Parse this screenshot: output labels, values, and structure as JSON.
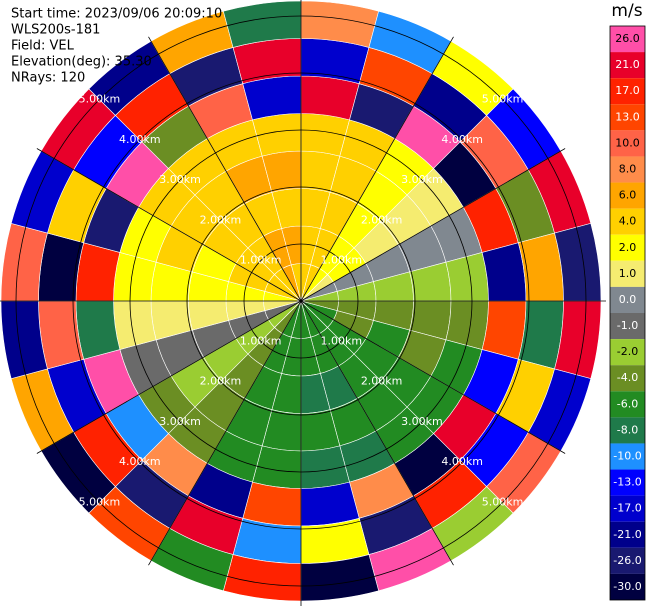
{
  "chart_data": {
    "type": "ppi",
    "info": [
      "Start time: 2023/09/06 20:09:10",
      "WLS200s-181",
      "Field: VEL",
      "Elevation(deg): 35.30",
      "NRays: 120"
    ],
    "colorbar": {
      "title": "m/s",
      "ticks": [
        {
          "value": 26,
          "label": "26.0"
        },
        {
          "value": 21,
          "label": "21.0"
        },
        {
          "value": 17,
          "label": "17.0"
        },
        {
          "value": 13,
          "label": "13.0"
        },
        {
          "value": 10,
          "label": "10.0"
        },
        {
          "value": 8,
          "label": "8.0"
        },
        {
          "value": 6,
          "label": "6.0"
        },
        {
          "value": 4,
          "label": "4.0"
        },
        {
          "value": 2,
          "label": "2.0"
        },
        {
          "value": 1,
          "label": "1.0"
        },
        {
          "value": 0,
          "label": "0.0"
        },
        {
          "value": -1,
          "label": "-1.0"
        },
        {
          "value": -2,
          "label": "-2.0"
        },
        {
          "value": -4,
          "label": "-4.0"
        },
        {
          "value": -6,
          "label": "-6.0"
        },
        {
          "value": -8,
          "label": "-8.0"
        },
        {
          "value": -10,
          "label": "-10.0"
        },
        {
          "value": -13,
          "label": "-13.0"
        },
        {
          "value": -17,
          "label": "-17.0"
        },
        {
          "value": -21,
          "label": "-21.0"
        },
        {
          "value": -26,
          "label": "-26.0"
        },
        {
          "value": -30,
          "label": "-30.0"
        }
      ],
      "colors": [
        "#ff4fa8",
        "#e8002a",
        "#ff2200",
        "#ff4500",
        "#ff6347",
        "#ff8c4a",
        "#ffa500",
        "#ffd000",
        "#ffff00",
        "#f5ec70",
        "#808890",
        "#6a6a6a",
        "#9acd32",
        "#6b8e23",
        "#228b22",
        "#1f7a4a",
        "#1e90ff",
        "#0000ff",
        "#0000cd",
        "#00008b",
        "#191970",
        "#000040"
      ]
    },
    "ring_labels": [
      {
        "value": 1,
        "label": "1.00km"
      },
      {
        "value": 2,
        "label": "2.00km"
      },
      {
        "value": 3,
        "label": "3.00km"
      },
      {
        "value": 4,
        "label": "4.00km"
      },
      {
        "value": 5,
        "label": "5.00km"
      }
    ],
    "velocity": [
      [
        5.3,
        5.6,
        5.2,
        5.4,
        5.0,
        22,
        -15,
        9
      ],
      [
        4.4,
        4.6,
        4.2,
        4.5,
        4.1,
        -24,
        14,
        -9
      ],
      [
        3.2,
        3.4,
        3.0,
        3.3,
        2.9,
        27,
        -19,
        3
      ],
      [
        1.8,
        2.0,
        1.6,
        1.9,
        1.5,
        -28,
        11,
        -12
      ],
      [
        0.3,
        0.5,
        0.2,
        0.4,
        0.1,
        18,
        -4,
        25
      ],
      [
        -1.3,
        -1.1,
        -1.5,
        -1.2,
        -1.6,
        -20,
        7,
        -26
      ],
      [
        -2.8,
        -2.6,
        -3.0,
        -2.7,
        -3.1,
        15,
        -7,
        23
      ],
      [
        -4.1,
        -3.9,
        -4.3,
        -4.0,
        -4.4,
        -11,
        5,
        -17
      ],
      [
        -5.1,
        -4.9,
        -5.3,
        -5.0,
        -5.4,
        21,
        -13,
        12
      ],
      [
        -5.7,
        -5.5,
        -5.9,
        -5.6,
        -6.0,
        -30,
        17,
        -2
      ],
      [
        -6.0,
        -5.8,
        -6.2,
        -5.9,
        -6.3,
        9,
        -22,
        26
      ],
      [
        -5.9,
        -5.7,
        -6.1,
        -5.8,
        -6.2,
        -14,
        3,
        -27
      ],
      [
        -5.3,
        -5.1,
        -5.5,
        -5.2,
        -5.6,
        13,
        -9,
        19
      ],
      [
        -4.4,
        -4.2,
        -4.6,
        -4.3,
        -4.7,
        -18,
        24,
        -5
      ],
      [
        -3.2,
        -3.0,
        -3.4,
        -3.1,
        -3.5,
        8,
        -25,
        16
      ],
      [
        -1.8,
        -1.6,
        -2.0,
        -1.7,
        -2.1,
        -10,
        20,
        -29
      ],
      [
        -0.3,
        -0.1,
        -0.5,
        -0.2,
        -0.6,
        26,
        -16,
        6
      ],
      [
        1.3,
        1.5,
        1.1,
        1.4,
        1.0,
        -7,
        12,
        -21
      ],
      [
        2.8,
        3.0,
        2.6,
        2.9,
        2.5,
        17,
        -28,
        10
      ],
      [
        4.1,
        4.3,
        3.9,
        4.2,
        3.8,
        -23,
        4,
        -14
      ],
      [
        5.1,
        5.3,
        4.9,
        5.2,
        4.8,
        28,
        -12,
        22
      ],
      [
        5.7,
        5.9,
        5.5,
        5.8,
        5.4,
        -3,
        19,
        -19
      ],
      [
        6.0,
        6.2,
        5.8,
        6.1,
        5.7,
        11,
        -26,
        7
      ],
      [
        5.9,
        6.1,
        5.7,
        6.0,
        5.6,
        -16,
        25,
        -8
      ]
    ]
  }
}
